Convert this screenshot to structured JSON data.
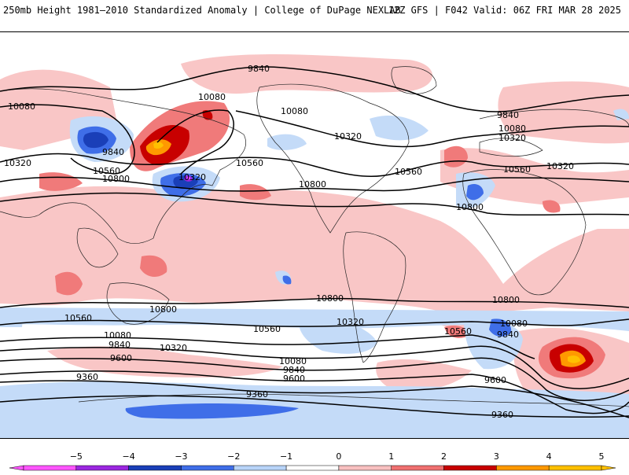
{
  "header": {
    "left_title": "250mb Height 1981–2010 Standardized Anomaly | College of DuPage NEXLAB",
    "right_title": "12Z GFS | F042 Valid: 06Z FRI MAR 28 2025"
  },
  "contour_labels": [
    "9840",
    "10080",
    "10080",
    "10080",
    "10320",
    "10320",
    "10320",
    "10320",
    "10560",
    "10560",
    "10560",
    "10800",
    "10800",
    "9840",
    "9840",
    "10080",
    "10320",
    "10800",
    "10800",
    "10800",
    "10560",
    "10560",
    "10560",
    "10320",
    "10320",
    "10080",
    "10080",
    "10080",
    "9840",
    "9840",
    "9840",
    "9600",
    "9600",
    "9600",
    "9360",
    "9360",
    "9360",
    "10800",
    "10560"
  ],
  "colorbar": {
    "ticks": [
      "−5",
      "−4",
      "−3",
      "−2",
      "−1",
      "0",
      "1",
      "2",
      "3",
      "4",
      "5"
    ],
    "colors": [
      "#ff55ff",
      "#9b27e0",
      "#1a3fb8",
      "#3f6ee8",
      "#b8d4f8",
      "#ffffff",
      "#f8c0c0",
      "#f07070",
      "#c80000",
      "#ff9900",
      "#ffc000"
    ]
  }
}
